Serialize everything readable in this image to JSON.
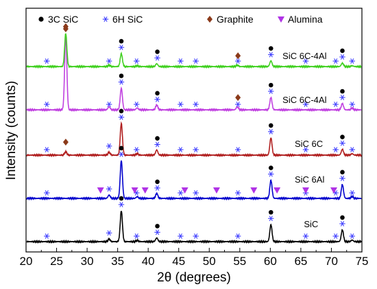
{
  "chart_data": {
    "type": "line",
    "title": "",
    "xlabel": "2θ (degrees)",
    "ylabel": "Intensity (counts)",
    "xlim": [
      20,
      75
    ],
    "xticks": [
      20,
      25,
      30,
      35,
      40,
      45,
      50,
      55,
      60,
      65,
      70,
      75
    ],
    "y_ticks_shown": false,
    "legend_position": "top",
    "legend": [
      {
        "label": "3C SiC",
        "marker": "circle",
        "color": "#000000"
      },
      {
        "label": "6H SiC",
        "marker": "asterisk",
        "color": "#3b3bff"
      },
      {
        "label": "Graphite",
        "marker": "diamond",
        "color": "#8b3a1a"
      },
      {
        "label": "Alumina",
        "marker": "triangle-down",
        "color": "#b033e6"
      }
    ],
    "series": [
      {
        "name": "SiC",
        "color": "#000000",
        "baseline": 0,
        "peaks": [
          {
            "x": 33.6,
            "h": 0.08
          },
          {
            "x": 35.6,
            "h": 1.0
          },
          {
            "x": 38.2,
            "h": 0.04
          },
          {
            "x": 41.4,
            "h": 0.12
          },
          {
            "x": 60.1,
            "h": 0.55
          },
          {
            "x": 71.8,
            "h": 0.38
          },
          {
            "x": 73.4,
            "h": 0.05
          }
        ],
        "markers": {
          "circle": [
            35.6,
            41.5,
            60.1,
            71.8
          ],
          "asterisk": [
            23.4,
            33.6,
            35.6,
            38.1,
            41.5,
            45.3,
            47.8,
            54.7,
            60.1,
            65.8,
            70.7,
            71.8,
            73.4
          ]
        }
      },
      {
        "name": "SiC 6Al",
        "color": "#0000cc",
        "baseline": 1,
        "peaks": [
          {
            "x": 33.6,
            "h": 0.1
          },
          {
            "x": 35.6,
            "h": 1.15
          },
          {
            "x": 38.2,
            "h": 0.05
          },
          {
            "x": 41.4,
            "h": 0.15
          },
          {
            "x": 60.1,
            "h": 0.55
          },
          {
            "x": 71.8,
            "h": 0.42
          },
          {
            "x": 73.4,
            "h": 0.06
          }
        ],
        "markers": {
          "circle": [
            35.6,
            41.5,
            60.1,
            71.8
          ],
          "asterisk": [
            23.4,
            33.6,
            35.6,
            38.1,
            41.5,
            45.3,
            47.8,
            54.7,
            60.1,
            65.8,
            70.7,
            71.8,
            73.4
          ],
          "triangle": [
            32.2,
            37.8,
            39.5,
            46.0,
            51.2,
            57.3,
            61.1,
            65.8,
            70.4
          ]
        }
      },
      {
        "name": "SiC 6C",
        "color": "#b01e1e",
        "baseline": 2,
        "peaks": [
          {
            "x": 26.5,
            "h": 0.12
          },
          {
            "x": 33.6,
            "h": 0.1
          },
          {
            "x": 35.6,
            "h": 1.1
          },
          {
            "x": 38.2,
            "h": 0.05
          },
          {
            "x": 41.4,
            "h": 0.18
          },
          {
            "x": 60.1,
            "h": 0.6
          },
          {
            "x": 71.8,
            "h": 0.2
          },
          {
            "x": 73.4,
            "h": 0.05
          }
        ],
        "markers": {
          "circle": [
            35.6,
            41.5,
            60.1,
            71.8
          ],
          "asterisk": [
            23.4,
            33.6,
            35.6,
            38.1,
            41.5,
            45.3,
            47.8,
            54.7,
            60.1,
            65.8,
            70.7,
            71.8,
            73.4
          ],
          "diamond": [
            26.5
          ]
        }
      },
      {
        "name": "SiC 6C-4Al",
        "color": "#c040e0",
        "baseline": 3,
        "peaks": [
          {
            "x": 26.5,
            "h": 1.2
          },
          {
            "x": 33.6,
            "h": 0.05
          },
          {
            "x": 35.6,
            "h": 0.35
          },
          {
            "x": 38.2,
            "h": 0.03
          },
          {
            "x": 41.4,
            "h": 0.08
          },
          {
            "x": 54.6,
            "h": 0.05
          },
          {
            "x": 60.1,
            "h": 0.2
          },
          {
            "x": 71.8,
            "h": 0.1
          },
          {
            "x": 73.4,
            "h": 0.03
          }
        ],
        "markers": {
          "circle": [
            35.6,
            41.5,
            60.1,
            71.8
          ],
          "asterisk": [
            23.4,
            33.6,
            35.6,
            38.1,
            41.5,
            45.3,
            47.8,
            54.7,
            60.1,
            65.8,
            70.7,
            71.8,
            73.4
          ],
          "diamond": [
            26.5,
            54.7
          ]
        }
      },
      {
        "name": "SiC 6C-4Al",
        "color": "#40d020",
        "baseline": 4,
        "peaks": [
          {
            "x": 26.5,
            "h": 1.15
          },
          {
            "x": 33.6,
            "h": 0.05
          },
          {
            "x": 35.6,
            "h": 0.45
          },
          {
            "x": 38.2,
            "h": 0.03
          },
          {
            "x": 41.4,
            "h": 0.1
          },
          {
            "x": 54.6,
            "h": 0.05
          },
          {
            "x": 60.1,
            "h": 0.2
          },
          {
            "x": 71.8,
            "h": 0.12
          },
          {
            "x": 73.4,
            "h": 0.03
          }
        ],
        "markers": {
          "circle": [
            35.6,
            41.5,
            60.1,
            71.8
          ],
          "asterisk": [
            23.4,
            33.6,
            35.6,
            38.1,
            41.5,
            45.3,
            47.8,
            54.7,
            60.1,
            65.8,
            70.7,
            71.8,
            73.4
          ],
          "diamond": [
            26.5,
            54.7
          ]
        }
      }
    ],
    "trace_labels": [
      {
        "text": "SiC",
        "x": 65.5
      },
      {
        "text": "SiC 6Al",
        "x": 64.0
      },
      {
        "text": "SiC 6C",
        "x": 64.0
      },
      {
        "text": "SiC 6C-4Al",
        "x": 62.0
      },
      {
        "text": "SiC 6C-4Al",
        "x": 62.0
      }
    ]
  }
}
